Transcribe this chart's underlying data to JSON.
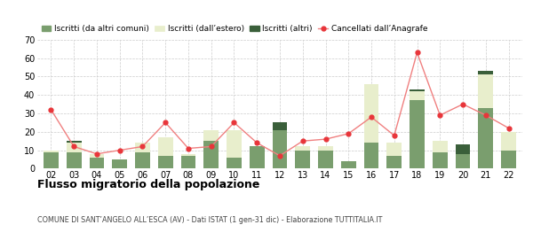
{
  "years": [
    "02",
    "03",
    "04",
    "05",
    "06",
    "07",
    "08",
    "09",
    "10",
    "11",
    "12",
    "13",
    "14",
    "15",
    "16",
    "17",
    "18",
    "19",
    "20",
    "21",
    "22"
  ],
  "iscritti_altri_comuni": [
    9,
    9,
    6,
    5,
    9,
    7,
    7,
    15,
    6,
    12,
    21,
    10,
    10,
    4,
    14,
    7,
    37,
    9,
    8,
    33,
    10
  ],
  "iscritti_estero": [
    1,
    5,
    2,
    0,
    5,
    10,
    1,
    6,
    15,
    0,
    0,
    2,
    2,
    0,
    32,
    7,
    5,
    6,
    0,
    18,
    10
  ],
  "iscritti_altri": [
    0,
    1,
    0,
    0,
    0,
    0,
    0,
    0,
    0,
    0,
    4,
    0,
    0,
    0,
    0,
    0,
    1,
    0,
    5,
    2,
    0
  ],
  "cancellati": [
    32,
    12,
    8,
    10,
    12,
    25,
    11,
    12,
    25,
    14,
    7,
    15,
    16,
    19,
    28,
    18,
    63,
    29,
    35,
    29,
    22
  ],
  "color_altri_comuni": "#7a9e6e",
  "color_estero": "#e8eecc",
  "color_altri": "#3a5f3a",
  "color_cancellati": "#e8353a",
  "color_line": "#f08080",
  "ylim": [
    0,
    70
  ],
  "yticks": [
    0,
    10,
    20,
    30,
    40,
    50,
    60,
    70
  ],
  "title": "Flusso migratorio della popolazione",
  "subtitle": "COMUNE DI SANT’ANGELO ALL’ESCA (AV) - Dati ISTAT (1 gen-31 dic) - Elaborazione TUTTITALIA.IT",
  "legend_labels": [
    "Iscritti (da altri comuni)",
    "Iscritti (dall’estero)",
    "Iscritti (altri)",
    "Cancellati dall’Anagrafe"
  ],
  "bg_color": "#ffffff",
  "grid_color": "#cccccc"
}
